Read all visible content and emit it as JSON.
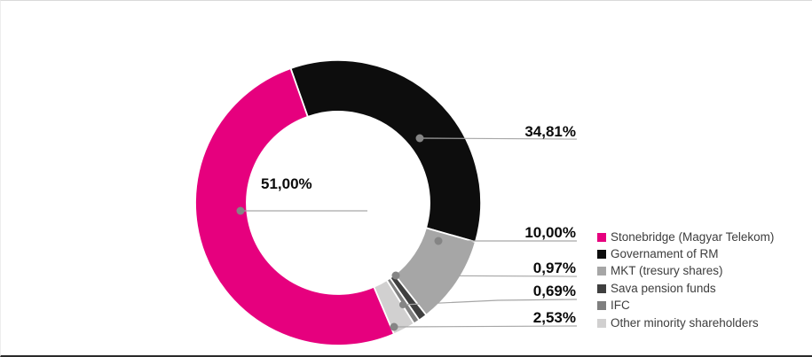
{
  "chart_data": {
    "type": "pie",
    "subtype": "donut",
    "title": "",
    "unit": "%",
    "decimal_separator": ",",
    "legend_position": "right",
    "direction": "clockwise",
    "start_angle_deg": -19.4,
    "draw_order": [
      1,
      2,
      3,
      4,
      5,
      0
    ],
    "leader_line_color": "#a6a6a6",
    "leader_dot_color": "#858585",
    "slice_separator_color": "#ffffff",
    "slices": [
      {
        "name": "Stonebridge (Magyar Telekom)",
        "value": 51.0,
        "label": "51,00%",
        "color": "#e6007e"
      },
      {
        "name": "Governament of RM",
        "value": 34.81,
        "label": "34,81%",
        "color": "#0d0d0d"
      },
      {
        "name": "MKT (tresury shares)",
        "value": 10.0,
        "label": "10,00%",
        "color": "#a6a6a6"
      },
      {
        "name": "Sava pension funds",
        "value": 0.97,
        "label": "0,97%",
        "color": "#3f3f3f"
      },
      {
        "name": "IFC",
        "value": 0.69,
        "label": "0,69%",
        "color": "#7f7f7f"
      },
      {
        "name": "Other minority shareholders",
        "value": 2.53,
        "label": "2,53%",
        "color": "#d1d0d0"
      }
    ]
  }
}
